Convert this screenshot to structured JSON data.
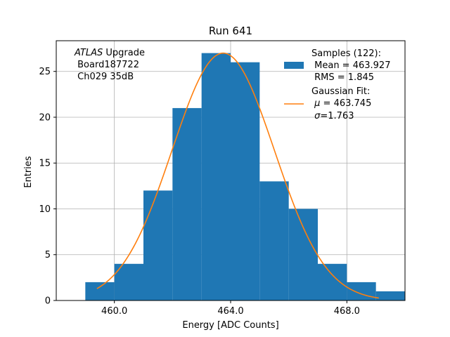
{
  "chart_data": {
    "type": "bar",
    "title": "Run 641",
    "xlabel": "Energy [ADC Counts]",
    "ylabel": "Entries",
    "xlim": [
      458.0,
      470.0
    ],
    "ylim": [
      0,
      28.35
    ],
    "xticks": [
      460.0,
      464.0,
      468.0
    ],
    "xtick_labels": [
      "460.0",
      "464.0",
      "468.0"
    ],
    "yticks": [
      0,
      5,
      10,
      15,
      20,
      25
    ],
    "ytick_labels": [
      "0",
      "5",
      "10",
      "15",
      "20",
      "25"
    ],
    "grid": true,
    "bin_width": 1.0,
    "bins": [
      {
        "left": 459.0,
        "count": 2
      },
      {
        "left": 460.0,
        "count": 4
      },
      {
        "left": 461.0,
        "count": 12
      },
      {
        "left": 462.0,
        "count": 21
      },
      {
        "left": 463.0,
        "count": 27
      },
      {
        "left": 464.0,
        "count": 26
      },
      {
        "left": 465.0,
        "count": 13
      },
      {
        "left": 466.0,
        "count": 10
      },
      {
        "left": 467.0,
        "count": 4
      },
      {
        "left": 468.0,
        "count": 2
      },
      {
        "left": 469.0,
        "count": 1
      }
    ],
    "fit": {
      "amplitude": 27.0,
      "mu": 463.745,
      "sigma": 1.763,
      "x_range": [
        459.4,
        469.1
      ]
    },
    "colors": {
      "bars": "#1f77b4",
      "fit": "#ff7f0e",
      "grid": "#b0b0b0"
    },
    "annotation": {
      "experiment": "ATLAS",
      "line1_suffix": " Upgrade",
      "line2": " Board187722",
      "line3": " Ch029 35dB"
    },
    "legend": {
      "placement": "top-right",
      "samples": {
        "line1": "Samples (122):",
        "line2": " Mean = 463.927",
        "line3": " RMS = 1.845"
      },
      "fit": {
        "line1": "Gaussian Fit:",
        "mu_symbol": "μ",
        "mu_text": " = 463.745",
        "sigma_symbol": "σ",
        "sigma_text": "=1.763"
      }
    }
  }
}
